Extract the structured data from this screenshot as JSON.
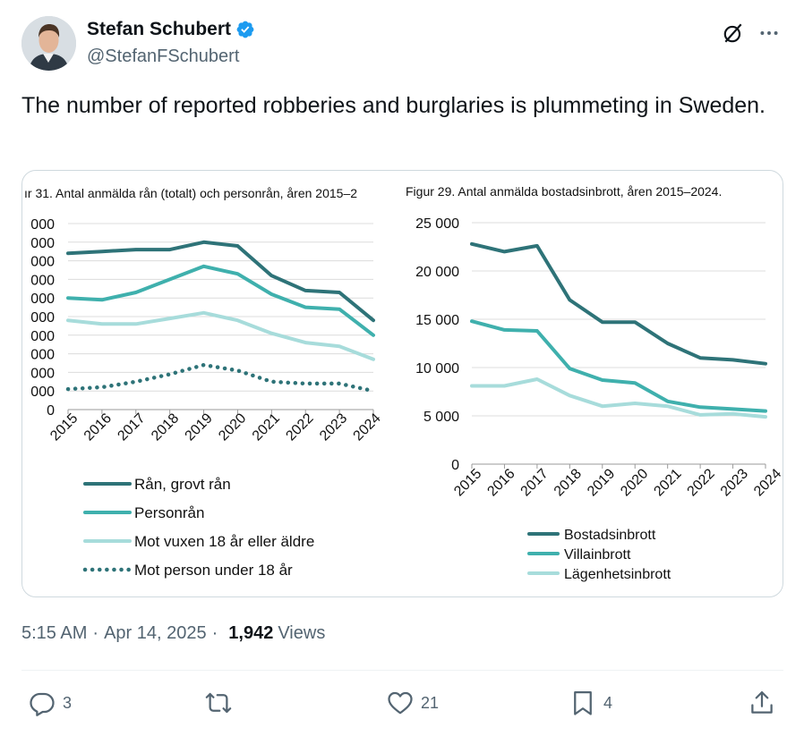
{
  "author": {
    "name": "Stefan Schubert",
    "handle": "@StefanFSchubert"
  },
  "tweet": {
    "text": "The number of reported robberies and burglaries is plummeting in Sweden."
  },
  "meta": {
    "time": "5:15 AM",
    "separator": "·",
    "date": "Apr 14, 2025",
    "views_count": "1,942",
    "views_label": "Views"
  },
  "actions": {
    "replies": "3",
    "likes": "21",
    "bookmarks": "4"
  },
  "colors": {
    "dark_teal": "#2e7378",
    "mid_teal": "#3fb0ad",
    "light_teal": "#a7dcdb",
    "verified": "#1d9bf0"
  },
  "chart_data": [
    {
      "type": "line",
      "title": "ır 31. Antal anmälda rån (totalt) och personrån, åren 2015–2",
      "x": [
        "2015",
        "2016",
        "2017",
        "2018",
        "2019",
        "2020",
        "2021",
        "2022",
        "2023",
        "2024"
      ],
      "ytick_labels": [
        "000",
        "000",
        "000",
        "000",
        "000",
        "000",
        "000",
        "000",
        "000",
        "000",
        "0"
      ],
      "ylim": [
        0,
        10
      ],
      "series": [
        {
          "name": "Rån, grovt  rån",
          "style": "solid",
          "color": "dark_teal",
          "values": [
            8.4,
            8.5,
            8.6,
            8.6,
            9.0,
            8.8,
            7.2,
            6.4,
            6.3,
            4.8
          ]
        },
        {
          "name": "Personrån",
          "style": "solid",
          "color": "mid_teal",
          "values": [
            6.0,
            5.9,
            6.3,
            7.0,
            7.7,
            7.3,
            6.2,
            5.5,
            5.4,
            4.0
          ]
        },
        {
          "name": "Mot vuxen 18 år eller äldre",
          "style": "solid",
          "color": "light_teal",
          "values": [
            4.8,
            4.6,
            4.6,
            4.9,
            5.2,
            4.8,
            4.1,
            3.6,
            3.4,
            2.7
          ]
        },
        {
          "name": "Mot person under 18 år",
          "style": "dotted",
          "color": "dark_teal",
          "values": [
            1.1,
            1.2,
            1.5,
            1.9,
            2.4,
            2.1,
            1.5,
            1.4,
            1.4,
            1.0
          ]
        }
      ]
    },
    {
      "type": "line",
      "title": "Figur 29. Antal anmälda bostadsinbrott, åren 2015–2024.",
      "x": [
        "2015",
        "2016",
        "2017",
        "2018",
        "2019",
        "2020",
        "2021",
        "2022",
        "2023",
        "2024"
      ],
      "ytick_labels": [
        "25 000",
        "20 000",
        "15 000",
        "10 000",
        "5 000",
        "0"
      ],
      "ylim": [
        0,
        25000
      ],
      "series": [
        {
          "name": "Bostadsinbrott",
          "style": "solid",
          "color": "dark_teal",
          "values": [
            22800,
            22000,
            22600,
            17000,
            14700,
            14700,
            12500,
            11000,
            10800,
            10400
          ]
        },
        {
          "name": "Villainbrott",
          "style": "solid",
          "color": "mid_teal",
          "values": [
            14800,
            13900,
            13800,
            9900,
            8700,
            8400,
            6500,
            5900,
            5700,
            5500
          ]
        },
        {
          "name": "Lägenhetsinbrott",
          "style": "solid",
          "color": "light_teal",
          "values": [
            8100,
            8100,
            8800,
            7100,
            6000,
            6300,
            6000,
            5100,
            5200,
            4900
          ]
        }
      ]
    }
  ]
}
